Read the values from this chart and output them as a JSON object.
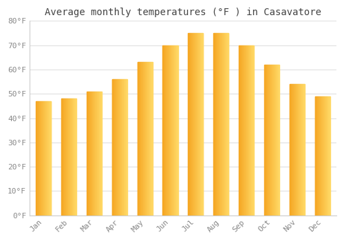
{
  "title": "Average monthly temperatures (°F ) in Casavatore",
  "months": [
    "Jan",
    "Feb",
    "Mar",
    "Apr",
    "May",
    "Jun",
    "Jul",
    "Aug",
    "Sep",
    "Oct",
    "Nov",
    "Dec"
  ],
  "values": [
    47,
    48,
    51,
    56,
    63,
    70,
    75,
    75,
    70,
    62,
    54,
    49
  ],
  "bar_color_left": "#F5A623",
  "bar_color_right": "#FFD966",
  "background_color": "#FFFFFF",
  "plot_bg_color": "#FFFFFF",
  "ylim": [
    0,
    80
  ],
  "yticks": [
    0,
    10,
    20,
    30,
    40,
    50,
    60,
    70,
    80
  ],
  "ytick_labels": [
    "0°F",
    "10°F",
    "20°F",
    "30°F",
    "40°F",
    "50°F",
    "60°F",
    "70°F",
    "80°F"
  ],
  "grid_color": "#E0E0E0",
  "tick_color": "#888888",
  "title_fontsize": 10,
  "tick_fontsize": 8,
  "font_family": "monospace"
}
